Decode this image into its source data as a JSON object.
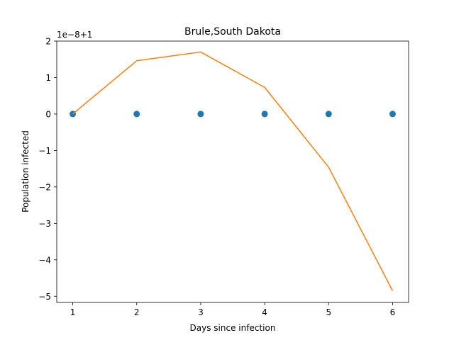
{
  "chart_data": {
    "type": "scatter",
    "title": "Brule,South Dakota",
    "xlabel": "Days since infection",
    "ylabel": "Population infected",
    "y_offset_label": "1e−8+1",
    "xlim": [
      0.75,
      6.25
    ],
    "ylim": [
      -5.17,
      2.0
    ],
    "x_ticks": [
      1,
      2,
      3,
      4,
      5,
      6
    ],
    "x_tick_labels": [
      "1",
      "2",
      "3",
      "4",
      "5",
      "6"
    ],
    "y_ticks": [
      -5,
      -4,
      -3,
      -2,
      -1,
      0,
      1,
      2
    ],
    "y_tick_labels": [
      "−5",
      "−4",
      "−3",
      "−2",
      "−1",
      "0",
      "1",
      "2"
    ],
    "grid": false,
    "series": [
      {
        "kind": "scatter",
        "color": "#1f77b4",
        "x": [
          1,
          2,
          3,
          4,
          5,
          6
        ],
        "y": [
          0,
          0,
          0,
          0,
          0,
          0
        ]
      },
      {
        "kind": "line",
        "color": "#ff7f0e",
        "x": [
          1,
          2,
          3,
          4,
          5,
          6
        ],
        "y": [
          0.0,
          1.46,
          1.7,
          0.73,
          -1.46,
          -4.85
        ]
      }
    ]
  }
}
